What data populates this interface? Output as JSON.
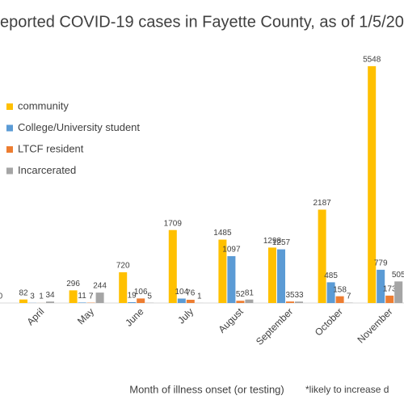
{
  "chart_data": {
    "type": "bar",
    "title": "eported COVID-19 cases in Fayette County, as of 1/5/20",
    "x_label": "Month of illness onset (or testing)",
    "annotation": "*likely to increase d",
    "categories": [
      null,
      "April",
      "May",
      "June",
      "July",
      "August",
      "September",
      "October",
      "November"
    ],
    "series": [
      {
        "name": "community",
        "color": "#FFC000",
        "values": [
          null,
          82,
          296,
          720,
          1709,
          1485,
          1298,
          2187,
          5548
        ]
      },
      {
        "name": "College/University student",
        "color": "#5B9BD5",
        "values": [
          null,
          3,
          11,
          19,
          104,
          1097,
          1257,
          485,
          779
        ]
      },
      {
        "name": "LTCF resident",
        "color": "#ED7D31",
        "values": [
          null,
          1,
          7,
          106,
          76,
          52,
          35,
          158,
          173
        ]
      },
      {
        "name": "Incarcerated",
        "color": "#A5A5A5",
        "values": [
          0,
          34,
          244,
          5,
          1,
          81,
          33,
          7,
          505
        ]
      }
    ],
    "ylim": [
      0,
      6000
    ],
    "legend": "left"
  }
}
